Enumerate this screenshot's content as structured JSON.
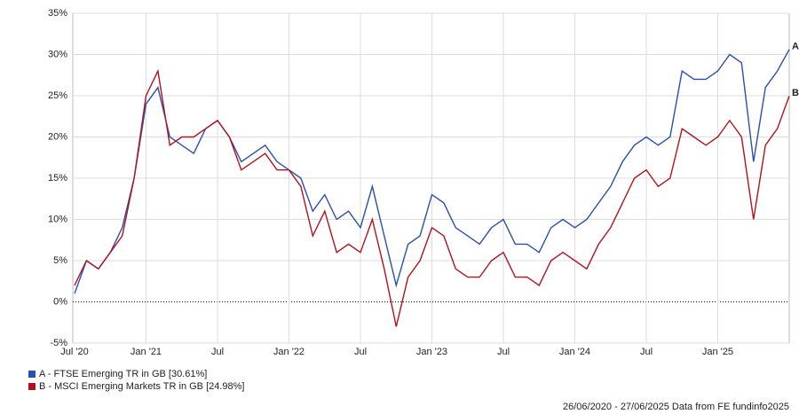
{
  "chart_data": {
    "type": "line",
    "categories": [
      "Jul '20",
      null,
      null,
      null,
      null,
      null,
      "Jan '21",
      null,
      null,
      null,
      null,
      null,
      "Jul",
      null,
      null,
      null,
      null,
      null,
      "Jan '22",
      null,
      null,
      null,
      null,
      null,
      "Jul",
      null,
      null,
      null,
      null,
      null,
      "Jan '23",
      null,
      null,
      null,
      null,
      null,
      "Jul",
      null,
      null,
      null,
      null,
      null,
      "Jan '24",
      null,
      null,
      null,
      null,
      null,
      "Jul",
      null,
      null,
      null,
      null,
      null,
      "Jan '25",
      null,
      null,
      null,
      null,
      null,
      null
    ],
    "series": [
      {
        "name": "A - FTSE Emerging TR in GB [30.61%]",
        "label": "A",
        "color": "#2a4fae",
        "values": [
          1,
          5,
          4,
          6,
          9,
          15,
          24,
          26,
          20,
          19,
          18,
          21,
          22,
          20,
          17,
          18,
          19,
          17,
          16,
          15,
          11,
          13,
          10,
          11,
          9,
          14,
          8,
          2,
          7,
          8,
          13,
          12,
          9,
          8,
          7,
          9,
          10,
          7,
          7,
          6,
          9,
          10,
          9,
          10,
          12,
          14,
          17,
          19,
          20,
          19,
          20,
          28,
          27,
          27,
          28,
          30,
          29,
          17,
          26,
          28,
          30.61
        ]
      },
      {
        "name": "B - MSCI Emerging Markets TR in GB [24.98%]",
        "label": "B",
        "color": "#b3121c",
        "values": [
          2,
          5,
          4,
          6,
          8,
          15,
          25,
          28,
          19,
          20,
          20,
          21,
          22,
          20,
          16,
          17,
          18,
          16,
          16,
          14,
          8,
          11,
          6,
          7,
          6,
          10,
          4,
          -3,
          3,
          5,
          9,
          8,
          4,
          3,
          3,
          5,
          6,
          3,
          3,
          2,
          5,
          6,
          5,
          4,
          7,
          9,
          12,
          15,
          16,
          14,
          15,
          21,
          20,
          19,
          20,
          22,
          20,
          10,
          19,
          21,
          24.98
        ]
      }
    ],
    "ylim": [
      -5,
      35
    ],
    "yticks": [
      {
        "value": -5,
        "label": "-5%"
      },
      {
        "value": 0,
        "label": "0%"
      },
      {
        "value": 5,
        "label": "5%"
      },
      {
        "value": 10,
        "label": "10%"
      },
      {
        "value": 15,
        "label": "15%"
      },
      {
        "value": 20,
        "label": "20%"
      },
      {
        "value": 25,
        "label": "25%"
      },
      {
        "value": 30,
        "label": "30%"
      },
      {
        "value": 35,
        "label": "35%"
      }
    ],
    "grid": true,
    "footer": "26/06/2020 - 27/06/2025 Data from FE fundinfo2025"
  }
}
